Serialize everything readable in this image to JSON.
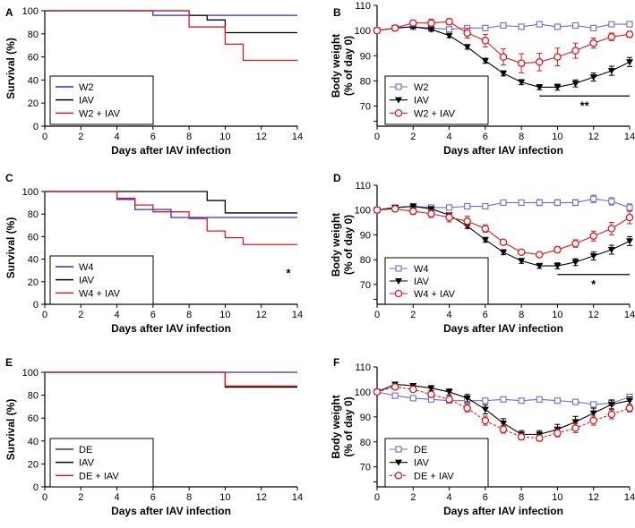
{
  "chart_data": [
    {
      "panel": "A",
      "type": "line",
      "subtype": "survival-step",
      "xlabel": "Days after IAV infection",
      "ylabel": "Survival (%)",
      "xlim": [
        0,
        14
      ],
      "ylim": [
        0,
        100
      ],
      "xticks": [
        0,
        2,
        4,
        6,
        8,
        10,
        12,
        14
      ],
      "yticks": [
        0,
        20,
        40,
        60,
        80,
        100
      ],
      "series": [
        {
          "name": "W2",
          "color": "#2b2bd9",
          "steps": [
            [
              0,
              100
            ],
            [
              6,
              96
            ],
            [
              14,
              96
            ]
          ]
        },
        {
          "name": "IAV",
          "color": "#000000",
          "steps": [
            [
              0,
              100
            ],
            [
              8,
              96
            ],
            [
              9,
              92
            ],
            [
              10,
              81
            ],
            [
              14,
              81
            ]
          ]
        },
        {
          "name": "W2 + IAV",
          "color": "#e31a1c",
          "steps": [
            [
              0,
              100
            ],
            [
              8,
              86
            ],
            [
              10,
              71
            ],
            [
              11,
              57
            ],
            [
              14,
              57
            ]
          ]
        }
      ],
      "significance": []
    },
    {
      "panel": "B",
      "type": "line",
      "subtype": "body-weight",
      "xlabel": "Days after IAV infection",
      "ylabel": [
        "Body weight",
        "(% of day 0)"
      ],
      "xlim": [
        0,
        14
      ],
      "ylim": [
        62,
        110
      ],
      "xticks": [
        0,
        2,
        4,
        6,
        8,
        10,
        12,
        14
      ],
      "yticks": [
        70,
        80,
        90,
        100,
        110
      ],
      "x": [
        0,
        1,
        2,
        3,
        4,
        5,
        6,
        7,
        8,
        9,
        10,
        11,
        12,
        13,
        14
      ],
      "series": [
        {
          "name": "W2",
          "color": "#6a6ae0",
          "marker": "square-open",
          "dashed": false,
          "values": [
            100,
            101,
            101.5,
            101,
            100.5,
            101,
            101,
            102,
            101.5,
            102.5,
            101.5,
            102,
            101,
            102.5,
            102.5
          ],
          "errors": [
            0.3,
            0.4,
            0.4,
            0.4,
            0.4,
            0.4,
            0.4,
            0.4,
            0.4,
            0.4,
            0.4,
            0.4,
            0.4,
            0.4,
            0.4
          ]
        },
        {
          "name": "IAV",
          "color": "#000000",
          "marker": "triangle-down",
          "dashed": false,
          "values": [
            100,
            101,
            101.5,
            100.5,
            98,
            93.5,
            88,
            83,
            79.5,
            77.5,
            77.5,
            79,
            81.5,
            84,
            87.5
          ],
          "errors": [
            0.3,
            0.5,
            0.6,
            0.8,
            0.8,
            0.9,
            1.0,
            1.0,
            1.0,
            1.0,
            1.2,
            1.4,
            1.6,
            1.8,
            1.8
          ]
        },
        {
          "name": "W2 + IAV",
          "color": "#e31a1c",
          "marker": "circle-open",
          "dashed": false,
          "values": [
            100,
            101,
            103,
            103,
            103.5,
            99,
            96,
            89.5,
            87,
            87.5,
            89.5,
            92,
            95,
            97.5,
            98.5
          ],
          "errors": [
            0.4,
            0.8,
            1.0,
            1.5,
            1.2,
            2.0,
            2.5,
            3.2,
            3.8,
            3.5,
            3.5,
            3.0,
            2.0,
            1.5,
            1.2
          ]
        }
      ],
      "significance": [
        {
          "label": "**",
          "x_from": 9,
          "x_to": 14,
          "y": 74
        }
      ]
    },
    {
      "panel": "C",
      "type": "line",
      "subtype": "survival-step",
      "xlabel": "Days after IAV infection",
      "ylabel": "Survival (%)",
      "xlim": [
        0,
        14
      ],
      "ylim": [
        0,
        100
      ],
      "xticks": [
        0,
        2,
        4,
        6,
        8,
        10,
        12,
        14
      ],
      "yticks": [
        0,
        20,
        40,
        60,
        80,
        100
      ],
      "series": [
        {
          "name": "W4",
          "color": "#2b2bd9",
          "steps": [
            [
              0,
              100
            ],
            [
              4,
              93
            ],
            [
              5,
              84
            ],
            [
              6,
              84
            ],
            [
              7,
              77
            ],
            [
              14,
              77
            ]
          ]
        },
        {
          "name": "IAV",
          "color": "#000000",
          "steps": [
            [
              0,
              100
            ],
            [
              9,
              92
            ],
            [
              10,
              81
            ],
            [
              14,
              81
            ]
          ]
        },
        {
          "name": "W4 + IAV",
          "color": "#e31a1c",
          "steps": [
            [
              0,
              100
            ],
            [
              4,
              94
            ],
            [
              5,
              88
            ],
            [
              6,
              82
            ],
            [
              8,
              76
            ],
            [
              9,
              65
            ],
            [
              10,
              59
            ],
            [
              11,
              53
            ],
            [
              14,
              53
            ]
          ]
        }
      ],
      "significance": [
        {
          "label": "*",
          "x": 14,
          "y": 40
        }
      ]
    },
    {
      "panel": "D",
      "type": "line",
      "subtype": "body-weight",
      "xlabel": "Days after IAV infection",
      "ylabel": [
        "Body weight",
        "(% of day 0)"
      ],
      "xlim": [
        0,
        14
      ],
      "ylim": [
        62,
        110
      ],
      "xticks": [
        0,
        2,
        4,
        6,
        8,
        10,
        12,
        14
      ],
      "yticks": [
        70,
        80,
        90,
        100,
        110
      ],
      "x": [
        0,
        1,
        2,
        3,
        4,
        5,
        6,
        7,
        8,
        9,
        10,
        11,
        12,
        13,
        14
      ],
      "series": [
        {
          "name": "W4",
          "color": "#6a6ae0",
          "marker": "square-open",
          "dashed": false,
          "values": [
            100,
            101,
            101.5,
            101,
            101,
            101.5,
            101.5,
            103,
            103,
            103,
            103,
            103,
            104.5,
            103.5,
            101
          ],
          "errors": [
            0.3,
            0.5,
            0.5,
            0.6,
            0.6,
            0.7,
            0.8,
            1.0,
            1.0,
            1.2,
            1.2,
            1.2,
            1.5,
            1.5,
            1.5
          ]
        },
        {
          "name": "IAV",
          "color": "#000000",
          "marker": "triangle-down",
          "dashed": false,
          "values": [
            100,
            101,
            101.5,
            100.5,
            98,
            93.5,
            88,
            83,
            79.5,
            77.5,
            77.5,
            79,
            81.5,
            84,
            87.5
          ],
          "errors": [
            0.3,
            0.5,
            0.6,
            0.8,
            0.8,
            0.9,
            1.0,
            1.0,
            1.0,
            1.0,
            1.2,
            1.4,
            1.6,
            1.8,
            1.8
          ]
        },
        {
          "name": "W4 + IAV",
          "color": "#e31a1c",
          "marker": "circle-open",
          "dashed": false,
          "values": [
            100,
            100.5,
            99.5,
            98.5,
            97,
            95.5,
            92.5,
            87,
            83,
            82,
            84,
            86.5,
            89.5,
            92.5,
            97
          ],
          "errors": [
            0.4,
            1.0,
            1.3,
            1.5,
            1.8,
            2.0,
            1.5,
            1.0,
            0.8,
            0.8,
            1.2,
            1.5,
            2.0,
            2.5,
            2.5
          ]
        }
      ],
      "significance": [
        {
          "label": "*",
          "x_from": 10,
          "x_to": 14,
          "y": 74
        }
      ]
    },
    {
      "panel": "E",
      "type": "line",
      "subtype": "survival-step",
      "xlabel": "Days after IAV infection",
      "ylabel": "Survival (%)",
      "xlim": [
        0,
        14
      ],
      "ylim": [
        0,
        100
      ],
      "xticks": [
        0,
        2,
        4,
        6,
        8,
        10,
        12,
        14
      ],
      "yticks": [
        0,
        20,
        40,
        60,
        80,
        100
      ],
      "series": [
        {
          "name": "DE",
          "color": "#2b2bd9",
          "steps": [
            [
              0,
              100
            ],
            [
              14,
              100
            ]
          ]
        },
        {
          "name": "IAV",
          "color": "#000000",
          "steps": [
            [
              0,
              100
            ],
            [
              10,
              87
            ],
            [
              14,
              87
            ]
          ]
        },
        {
          "name": "DE + IAV",
          "color": "#e31a1c",
          "steps": [
            [
              0,
              100
            ],
            [
              10,
              88
            ],
            [
              14,
              88
            ]
          ]
        }
      ],
      "significance": []
    },
    {
      "panel": "F",
      "type": "line",
      "subtype": "body-weight",
      "xlabel": "Days after IAV infection",
      "ylabel": [
        "Body weight",
        "(% of day 0)"
      ],
      "xlim": [
        0,
        14
      ],
      "ylim": [
        62,
        110
      ],
      "xticks": [
        0,
        2,
        4,
        6,
        8,
        10,
        12,
        14
      ],
      "yticks": [
        70,
        80,
        90,
        100,
        110
      ],
      "x": [
        0,
        1,
        2,
        3,
        4,
        5,
        6,
        7,
        8,
        9,
        10,
        11,
        12,
        13,
        14
      ],
      "series": [
        {
          "name": "DE",
          "color": "#6a6ae0",
          "marker": "square-open",
          "dashed": false,
          "values": [
            100,
            98.5,
            97.5,
            97,
            96.5,
            96.5,
            96.5,
            97,
            96.5,
            97,
            96.5,
            96,
            95,
            95.5,
            98
          ],
          "errors": [
            0.3,
            0.4,
            0.4,
            0.4,
            0.4,
            0.4,
            0.4,
            0.4,
            0.5,
            0.5,
            0.5,
            0.5,
            0.6,
            0.6,
            0.8
          ]
        },
        {
          "name": "IAV",
          "color": "#000000",
          "marker": "triangle-down",
          "dashed": false,
          "values": [
            100,
            103,
            102.5,
            101.5,
            100,
            97.5,
            93,
            87.5,
            83,
            83,
            85,
            88,
            91.5,
            95,
            96.5
          ],
          "errors": [
            0.3,
            0.6,
            0.8,
            1.0,
            1.2,
            1.5,
            1.8,
            1.8,
            1.5,
            1.5,
            2.0,
            2.2,
            2.0,
            1.8,
            1.5
          ]
        },
        {
          "name": "DE + IAV",
          "color": "#e31a1c",
          "marker": "circle-open",
          "dashed": true,
          "values": [
            100,
            102,
            101,
            99,
            97,
            93.5,
            88.5,
            85,
            82,
            81.5,
            83.5,
            85.5,
            88.5,
            91,
            93.5
          ],
          "errors": [
            0.3,
            0.6,
            0.8,
            1.0,
            1.2,
            1.5,
            1.8,
            1.5,
            1.2,
            1.2,
            1.5,
            1.8,
            1.8,
            1.8,
            1.5
          ]
        }
      ],
      "significance": []
    }
  ]
}
